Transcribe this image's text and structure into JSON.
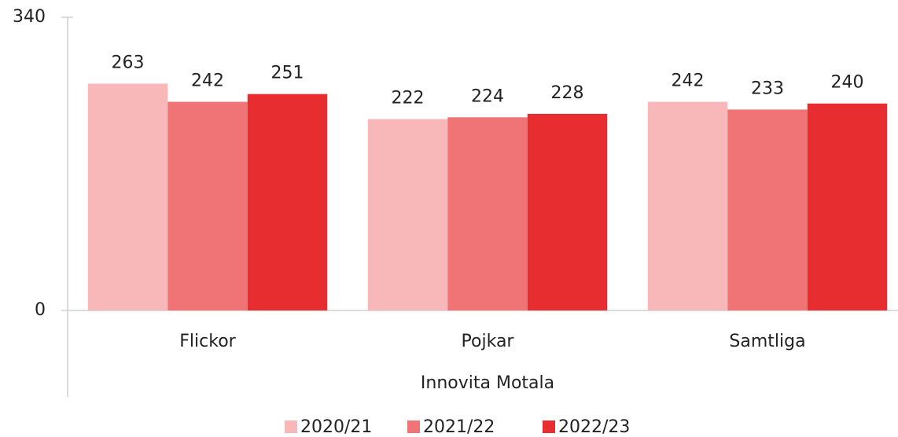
{
  "chart_data": {
    "type": "bar",
    "categories": [
      "Flickor",
      "Pojkar",
      "Samtliga"
    ],
    "xlabel": "Innovita Motala",
    "series": [
      {
        "name": "2020/21",
        "color": "#f8b8b9",
        "values": [
          263,
          222,
          242
        ]
      },
      {
        "name": "2021/22",
        "color": "#f07475",
        "values": [
          242,
          224,
          233
        ]
      },
      {
        "name": "2022/23",
        "color": "#e82d30",
        "values": [
          251,
          228,
          240
        ]
      }
    ],
    "ylim": [
      0,
      340
    ],
    "yticks": [
      0,
      340
    ],
    "legend": "bottom"
  }
}
